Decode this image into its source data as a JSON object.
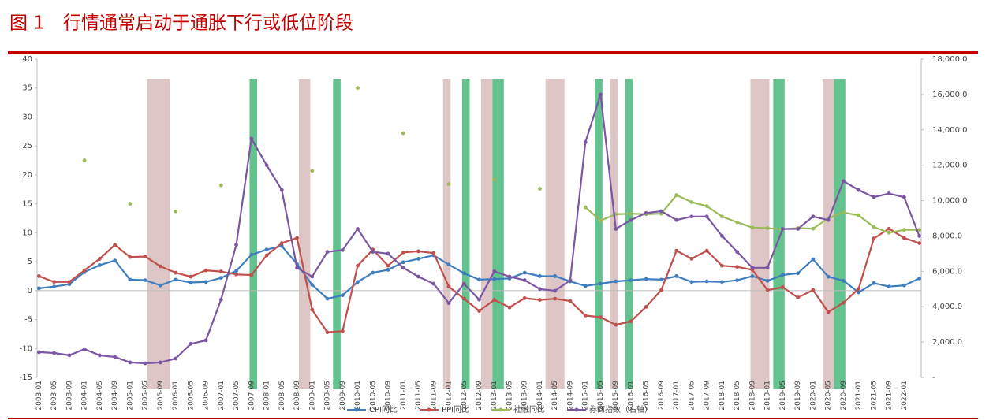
{
  "chart_data": {
    "type": "line",
    "title": "图 1　行情通常启动于通胀下行或低位阶段",
    "categories": [
      "2003-01",
      "2003-05",
      "2003-09",
      "2004-01",
      "2004-05",
      "2004-09",
      "2005-01",
      "2005-05",
      "2005-09",
      "2006-01",
      "2006-05",
      "2006-09",
      "2007-01",
      "2007-05",
      "2007-09",
      "2008-01",
      "2008-05",
      "2008-09",
      "2009-01",
      "2009-05",
      "2009-09",
      "2010-01",
      "2010-05",
      "2010-09",
      "2011-01",
      "2011-05",
      "2011-09",
      "2012-01",
      "2012-05",
      "2012-09",
      "2013-01",
      "2013-05",
      "2013-09",
      "2014-01",
      "2014-05",
      "2014-09",
      "2015-01",
      "2015-05",
      "2015-09",
      "2016-01",
      "2016-05",
      "2016-09",
      "2017-01",
      "2017-05",
      "2017-09",
      "2018-01",
      "2018-05",
      "2018-09",
      "2019-01",
      "2019-05",
      "2019-09",
      "2020-01",
      "2020-05",
      "2020-09",
      "2021-01",
      "2021-05",
      "2021-09",
      "2022-01",
      null
    ],
    "series": [
      {
        "name": "CPI同比",
        "color": "#3e7ebf",
        "values": [
          0.4,
          0.7,
          1.1,
          3.2,
          4.4,
          5.2,
          1.9,
          1.8,
          0.9,
          1.9,
          1.4,
          1.5,
          2.2,
          3.4,
          6.2,
          7.1,
          7.7,
          4.6,
          1.0,
          -1.4,
          -0.8,
          1.5,
          3.1,
          3.6,
          4.9,
          5.5,
          6.1,
          4.5,
          3.0,
          1.9,
          2.0,
          2.1,
          3.1,
          2.5,
          2.5,
          1.6,
          0.8,
          1.2,
          1.6,
          1.8,
          2.0,
          1.9,
          2.5,
          1.5,
          1.6,
          1.5,
          1.8,
          2.5,
          1.7,
          2.7,
          3.0,
          5.4,
          2.4,
          1.7,
          -0.3,
          1.3,
          0.7,
          0.9,
          2.1
        ]
      },
      {
        "name": "PPI同比",
        "color": "#c0504d",
        "values": [
          2.5,
          1.5,
          1.5,
          3.5,
          5.5,
          7.9,
          5.8,
          5.9,
          4.2,
          3.1,
          2.4,
          3.5,
          3.3,
          2.8,
          2.7,
          6.1,
          8.2,
          9.1,
          -3.3,
          -7.2,
          -7.0,
          4.3,
          7.1,
          4.3,
          6.6,
          6.8,
          6.5,
          0.7,
          -1.4,
          -3.5,
          -1.6,
          -2.9,
          -1.3,
          -1.6,
          -1.4,
          -1.8,
          -4.3,
          -4.6,
          -5.9,
          -5.3,
          -2.8,
          0.1,
          6.9,
          5.5,
          6.9,
          4.3,
          4.1,
          3.6,
          0.1,
          0.6,
          -1.2,
          0.1,
          -3.7,
          -2.1,
          0.3,
          9.0,
          10.7,
          9.1,
          8.2
        ]
      },
      {
        "name": "社融同比",
        "color": "#9bbb59",
        "values": [
          null,
          null,
          null,
          22.5,
          null,
          null,
          15.0,
          null,
          null,
          13.7,
          null,
          null,
          18.2,
          null,
          null,
          null,
          null,
          null,
          20.7,
          null,
          null,
          35.0,
          null,
          null,
          27.2,
          null,
          null,
          18.4,
          null,
          null,
          19.2,
          null,
          null,
          17.6,
          null,
          null,
          14.4,
          12.1,
          13.2,
          13.3,
          13.2,
          13.3,
          16.5,
          15.3,
          14.6,
          12.8,
          11.8,
          10.9,
          10.8,
          10.6,
          10.8,
          10.7,
          12.5,
          13.5,
          13.0,
          11.0,
          10.0,
          10.5,
          10.5
        ]
      },
      {
        "name": "券商指数（右轴）",
        "color": "#7b57a3",
        "axis": "y2",
        "values": [
          1430,
          1380,
          1250,
          1600,
          1250,
          1160,
          850,
          800,
          850,
          1070,
          1900,
          2100,
          4400,
          7500,
          13500,
          12000,
          10600,
          6200,
          5700,
          7100,
          7200,
          8400,
          7100,
          7000,
          6200,
          5700,
          5300,
          4200,
          5300,
          4400,
          6000,
          5700,
          5500,
          5000,
          4900,
          5500,
          13300,
          16000,
          8400,
          8900,
          9300,
          9400,
          8900,
          9100,
          9100,
          8000,
          7100,
          6200,
          6200,
          8400,
          8400,
          9100,
          8900,
          11100,
          10600,
          10200,
          10400,
          10200,
          8000
        ]
      }
    ],
    "bands": [
      {
        "start": "2005-06",
        "end": "2005-11",
        "color": "#c9a0a0"
      },
      {
        "start": "2007-09",
        "end": "2007-10",
        "color": "#3cb371"
      },
      {
        "start": "2008-10",
        "end": "2008-12",
        "color": "#c9a0a0"
      },
      {
        "start": "2009-07",
        "end": "2009-08",
        "color": "#3cb371"
      },
      {
        "start": "2011-12",
        "end": "2012-01",
        "color": "#c9a0a0"
      },
      {
        "start": "2012-05",
        "end": "2012-06",
        "color": "#3cb371"
      },
      {
        "start": "2012-10",
        "end": "2012-12",
        "color": "#c9a0a0"
      },
      {
        "start": "2013-01",
        "end": "2013-03",
        "color": "#3cb371"
      },
      {
        "start": "2014-03",
        "end": "2014-07",
        "color": "#c9a0a0"
      },
      {
        "start": "2015-04",
        "end": "2015-05",
        "color": "#3cb371"
      },
      {
        "start": "2015-08",
        "end": "2015-09",
        "color": "#c9a0a0"
      },
      {
        "start": "2015-12",
        "end": "2016-01",
        "color": "#3cb371"
      },
      {
        "start": "2018-09",
        "end": "2019-01",
        "color": "#c9a0a0"
      },
      {
        "start": "2019-03",
        "end": "2019-05",
        "color": "#3cb371"
      },
      {
        "start": "2020-04",
        "end": "2020-06",
        "color": "#c9a0a0"
      },
      {
        "start": "2020-07",
        "end": "2020-09",
        "color": "#3cb371"
      }
    ],
    "ylim": [
      -15,
      40
    ],
    "yticks": [
      -15,
      -10,
      -5,
      0,
      5,
      10,
      15,
      20,
      25,
      30,
      35,
      40
    ],
    "y2lim": [
      0,
      18000
    ],
    "y2ticks": [
      {
        "value": 0,
        "label": "-"
      },
      {
        "value": 2000,
        "label": "2,000.0"
      },
      {
        "value": 4000,
        "label": "4,000.0"
      },
      {
        "value": 6000,
        "label": "6,000.0"
      },
      {
        "value": 8000,
        "label": "8,000.0"
      },
      {
        "value": 10000,
        "label": "10,000.0"
      },
      {
        "value": 12000,
        "label": "12,000.0"
      },
      {
        "value": 14000,
        "label": "14,000.0"
      },
      {
        "value": 16000,
        "label": "16,000.0"
      },
      {
        "value": 18000,
        "label": "18,000.0"
      }
    ],
    "legend": "bottom"
  }
}
